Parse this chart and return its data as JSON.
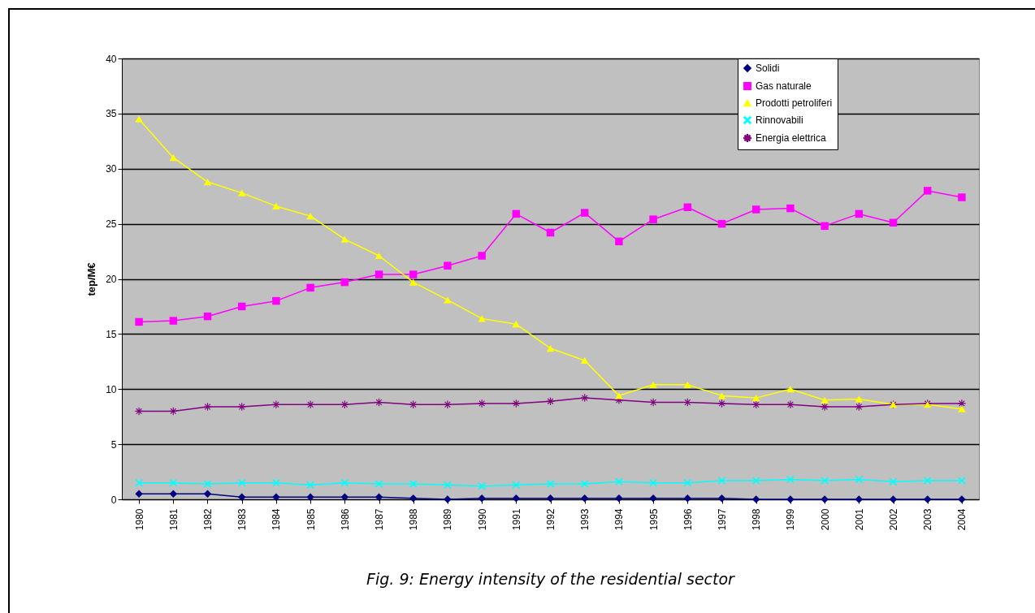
{
  "chart_data": {
    "type": "line",
    "ylabel": "tep/M€",
    "annotations": [
      "Fig. 9: Energy intensity of the residential sector"
    ],
    "categories": [
      "1980",
      "1981",
      "1982",
      "1983",
      "1984",
      "1985",
      "1986",
      "1987",
      "1988",
      "1989",
      "1990",
      "1991",
      "1992",
      "1993",
      "1994",
      "1995",
      "1996",
      "1997",
      "1998",
      "1999",
      "2000",
      "2001",
      "2002",
      "2003",
      "2004"
    ],
    "series": [
      {
        "name": "Solidi",
        "color": "#000080",
        "marker": "diamond",
        "values": [
          0.5,
          0.5,
          0.5,
          0.2,
          0.2,
          0.2,
          0.2,
          0.2,
          0.1,
          0,
          0.1,
          0.1,
          0.1,
          0.1,
          0.1,
          0.1,
          0.1,
          0.1,
          0,
          0,
          0,
          0,
          0,
          0,
          0
        ]
      },
      {
        "name": "Gas naturale",
        "color": "#ff00ff",
        "marker": "square",
        "values": [
          16.1,
          16.2,
          16.6,
          17.5,
          18.0,
          19.2,
          19.7,
          20.4,
          20.4,
          21.2,
          22.1,
          25.9,
          24.2,
          26.0,
          23.4,
          25.4,
          26.5,
          25.0,
          26.3,
          26.4,
          24.8,
          25.9,
          25.1,
          28.0,
          27.4
        ]
      },
      {
        "name": "Prodotti petroliferi",
        "color": "#ffff00",
        "marker": "triangle",
        "values": [
          34.5,
          31.0,
          28.8,
          27.8,
          26.6,
          25.7,
          23.6,
          22.1,
          19.7,
          18.1,
          16.4,
          15.9,
          13.7,
          12.6,
          9.4,
          10.4,
          10.4,
          9.4,
          9.2,
          10.0,
          9.0,
          9.1,
          8.6,
          8.6,
          8.2
        ]
      },
      {
        "name": "Rinnovabili",
        "color": "#00ffff",
        "marker": "cross",
        "values": [
          1.5,
          1.5,
          1.4,
          1.5,
          1.5,
          1.3,
          1.5,
          1.4,
          1.4,
          1.3,
          1.2,
          1.3,
          1.4,
          1.4,
          1.6,
          1.5,
          1.5,
          1.7,
          1.7,
          1.8,
          1.7,
          1.8,
          1.6,
          1.7,
          1.7
        ]
      },
      {
        "name": "Energia elettrica",
        "color": "#800080",
        "marker": "star",
        "values": [
          8.0,
          8.0,
          8.4,
          8.4,
          8.6,
          8.6,
          8.6,
          8.8,
          8.6,
          8.6,
          8.7,
          8.7,
          8.9,
          9.2,
          9.0,
          8.8,
          8.8,
          8.7,
          8.6,
          8.6,
          8.4,
          8.4,
          8.6,
          8.7,
          8.7
        ]
      }
    ],
    "ylim": [
      0,
      40
    ],
    "yticks": [
      0,
      5,
      10,
      15,
      20,
      25,
      30,
      35,
      40
    ],
    "grid": "y",
    "legend": "top right",
    "line_style": "solid"
  }
}
